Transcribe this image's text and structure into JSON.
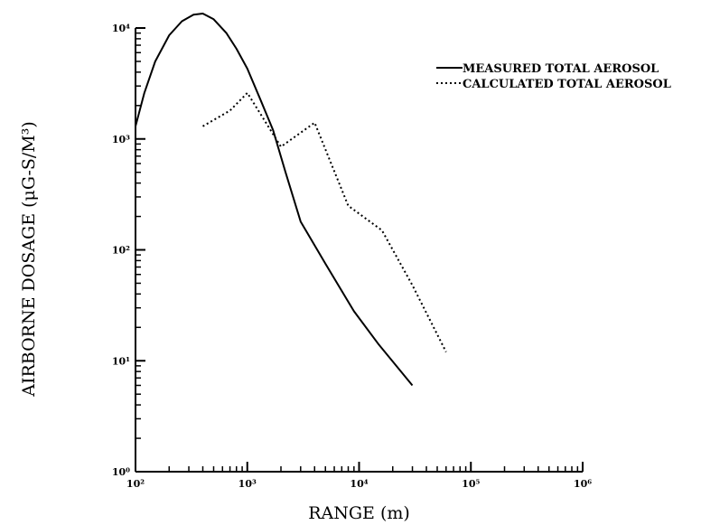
{
  "chart_data": {
    "type": "line",
    "title": "",
    "xlabel": "RANGE (m)",
    "ylabel": "AIRBORNE DOSAGE (μG-S/M³)",
    "x_scale": "log",
    "y_scale": "log",
    "xlim": [
      100,
      1000000
    ],
    "ylim": [
      1,
      10000
    ],
    "x_ticks": [
      {
        "value": 100,
        "label": "10²"
      },
      {
        "value": 1000,
        "label": "10³"
      },
      {
        "value": 10000,
        "label": "10⁴"
      },
      {
        "value": 100000,
        "label": "10⁵"
      },
      {
        "value": 1000000,
        "label": "10⁶"
      }
    ],
    "y_ticks": [
      {
        "value": 1,
        "label": "10⁰"
      },
      {
        "value": 10,
        "label": "10¹"
      },
      {
        "value": 100,
        "label": "10²"
      },
      {
        "value": 1000,
        "label": "10³"
      },
      {
        "value": 10000,
        "label": "10⁴"
      }
    ],
    "grid": false,
    "legend_position": "top-right",
    "series": [
      {
        "name": "MEASURED TOTAL AEROSOL",
        "style": "solid",
        "color": "#000000",
        "points": [
          [
            100,
            1300
          ],
          [
            120,
            2600
          ],
          [
            150,
            5000
          ],
          [
            200,
            8600
          ],
          [
            260,
            11500
          ],
          [
            330,
            13200
          ],
          [
            400,
            13500
          ],
          [
            500,
            12000
          ],
          [
            650,
            9000
          ],
          [
            800,
            6500
          ],
          [
            1000,
            4300
          ],
          [
            1300,
            2300
          ],
          [
            1700,
            1200
          ],
          [
            2200,
            500
          ],
          [
            3000,
            180
          ],
          [
            5000,
            75
          ],
          [
            9000,
            28
          ],
          [
            15000,
            14
          ],
          [
            30000,
            6
          ]
        ]
      },
      {
        "name": "CALCULATED TOTAL AEROSOL",
        "style": "dotted",
        "color": "#000000",
        "points": [
          [
            400,
            1300
          ],
          [
            700,
            1800
          ],
          [
            1000,
            2600
          ],
          [
            2000,
            850
          ],
          [
            4000,
            1400
          ],
          [
            8000,
            250
          ],
          [
            16000,
            150
          ],
          [
            30000,
            48
          ],
          [
            60000,
            12
          ]
        ]
      }
    ]
  }
}
